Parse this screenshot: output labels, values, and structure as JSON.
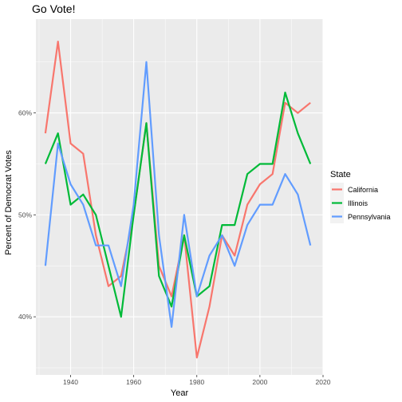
{
  "chart_data": {
    "type": "line",
    "title": "Go Vote!",
    "xlabel": "Year",
    "ylabel": "Percent of Democrat Votes",
    "xlim": [
      1929,
      2020
    ],
    "ylim": [
      0.343,
      0.692
    ],
    "x_ticks": [
      1940,
      1960,
      1980,
      2000,
      2020
    ],
    "x_tick_labels": [
      "1940",
      "1960",
      "1980",
      "2000",
      "2020"
    ],
    "y_ticks": [
      0.4,
      0.5,
      0.6
    ],
    "y_tick_labels": [
      "40%",
      "50%",
      "60%"
    ],
    "grid": true,
    "legend": {
      "title": "State",
      "position": "right"
    },
    "x": [
      1932,
      1936,
      1940,
      1944,
      1948,
      1952,
      1956,
      1960,
      1964,
      1968,
      1972,
      1976,
      1980,
      1984,
      1988,
      1992,
      1996,
      2000,
      2004,
      2008,
      2012,
      2016
    ],
    "series": [
      {
        "name": "California",
        "color": "#F8766D",
        "values": [
          0.58,
          0.67,
          0.57,
          0.56,
          0.48,
          0.43,
          0.44,
          0.5,
          0.59,
          0.45,
          0.42,
          0.48,
          0.36,
          0.41,
          0.48,
          0.46,
          0.51,
          0.53,
          0.54,
          0.61,
          0.6,
          0.61
        ]
      },
      {
        "name": "Illinois",
        "color": "#00BA38",
        "values": [
          0.55,
          0.58,
          0.51,
          0.52,
          0.5,
          0.45,
          0.4,
          0.5,
          0.59,
          0.44,
          0.41,
          0.48,
          0.42,
          0.43,
          0.49,
          0.49,
          0.54,
          0.55,
          0.55,
          0.62,
          0.58,
          0.55
        ]
      },
      {
        "name": "Pennsylvania",
        "color": "#619CFF",
        "values": [
          0.45,
          0.57,
          0.53,
          0.51,
          0.47,
          0.47,
          0.43,
          0.51,
          0.65,
          0.48,
          0.39,
          0.5,
          0.42,
          0.46,
          0.48,
          0.45,
          0.49,
          0.51,
          0.51,
          0.54,
          0.52,
          0.47
        ]
      }
    ]
  }
}
